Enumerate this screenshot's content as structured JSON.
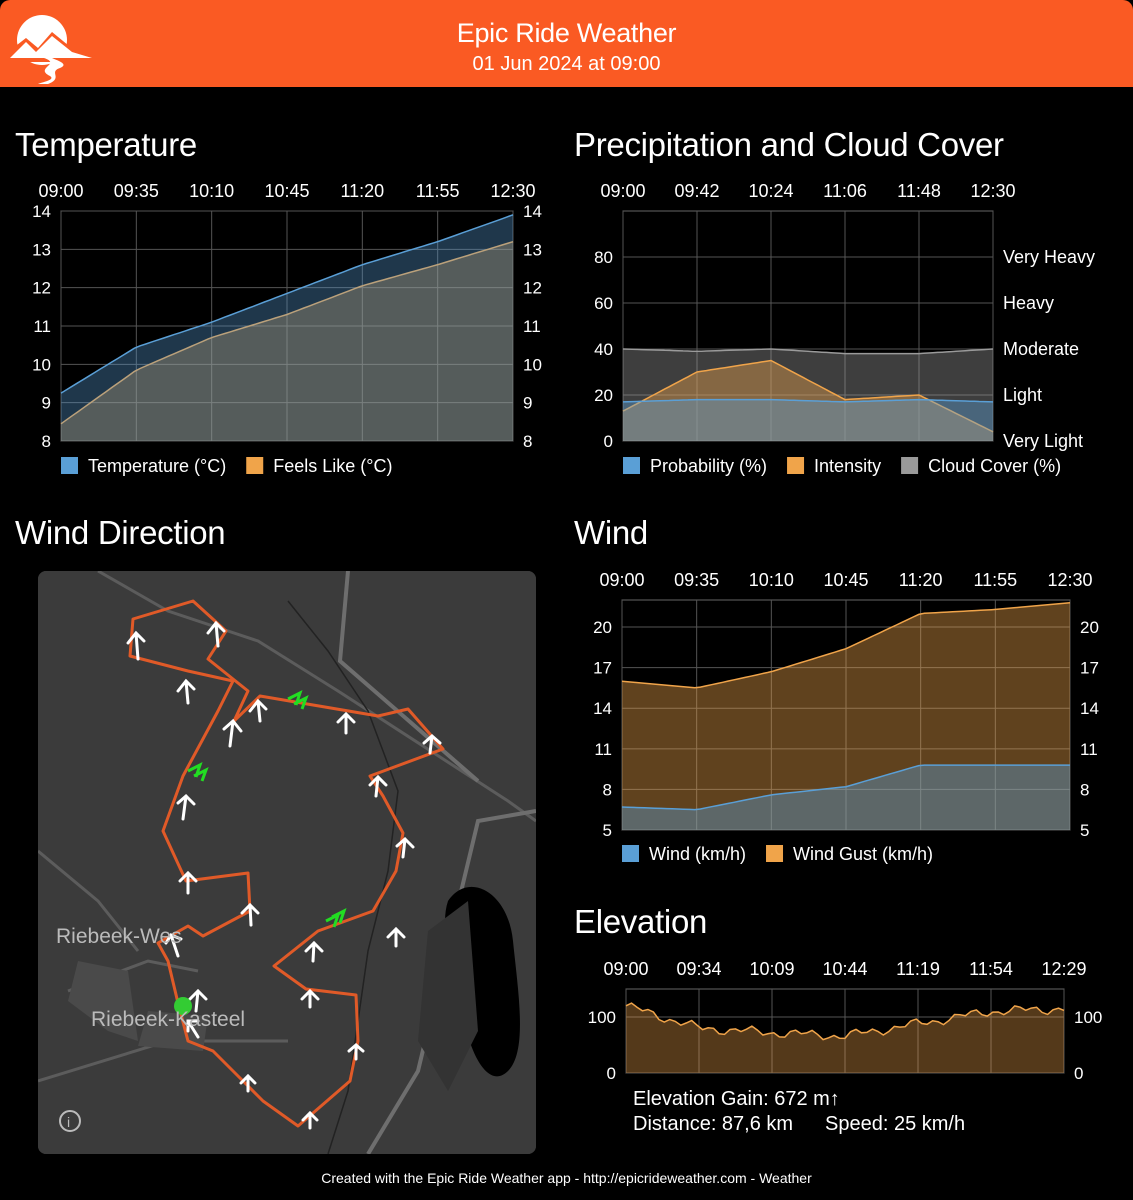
{
  "header": {
    "title": "Epic Ride Weather",
    "subtitle": "01 Jun 2024 at 09:00",
    "accent": "#fa5a23"
  },
  "temperature": {
    "title": "Temperature",
    "chart_data": {
      "type": "area",
      "x_ticks": [
        "09:00",
        "09:35",
        "10:10",
        "10:45",
        "11:20",
        "11:55",
        "12:30"
      ],
      "y_ticks": [
        8,
        9,
        10,
        11,
        12,
        13,
        14
      ],
      "ylim": [
        8,
        14
      ],
      "x": [
        "09:00",
        "09:35",
        "10:10",
        "10:45",
        "11:20",
        "11:55",
        "12:30"
      ],
      "series": [
        {
          "name": "Temperature (°C)",
          "color": "#5a9fd6",
          "values": [
            9.25,
            10.45,
            11.1,
            11.85,
            12.6,
            13.2,
            13.9
          ]
        },
        {
          "name": "Feels Like (°C)",
          "color": "#f0a44a",
          "values": [
            8.45,
            9.85,
            10.7,
            11.3,
            12.05,
            12.6,
            13.2
          ]
        }
      ]
    }
  },
  "precip": {
    "title": "Precipitation and Cloud Cover",
    "chart_data": {
      "type": "area",
      "x_ticks": [
        "09:00",
        "09:42",
        "10:24",
        "11:06",
        "11:48",
        "12:30"
      ],
      "y_ticks": [
        0,
        20,
        40,
        60,
        80
      ],
      "right_labels": [
        "Very Light",
        "Light",
        "Moderate",
        "Heavy",
        "Very Heavy"
      ],
      "ylim": [
        0,
        100
      ],
      "x": [
        "09:00",
        "09:42",
        "10:24",
        "11:06",
        "11:48",
        "12:30"
      ],
      "series": [
        {
          "name": "Probability (%)",
          "color": "#5a9fd6",
          "values": [
            17,
            18,
            18,
            17,
            18,
            17
          ]
        },
        {
          "name": "Intensity",
          "color": "#f0a44a",
          "values": [
            13,
            30,
            35,
            18,
            20,
            4
          ]
        },
        {
          "name": "Cloud Cover (%)",
          "color": "#9a9a9a",
          "values": [
            40,
            39,
            40,
            38,
            38,
            40
          ]
        }
      ]
    }
  },
  "wind_direction": {
    "title": "Wind Direction",
    "map_labels": [
      "Riebeek-Wes",
      "Riebeek-Kasteel"
    ],
    "info_icon": "info-icon"
  },
  "wind": {
    "title": "Wind",
    "chart_data": {
      "type": "area",
      "x_ticks": [
        "09:00",
        "09:35",
        "10:10",
        "10:45",
        "11:20",
        "11:55",
        "12:30"
      ],
      "y_ticks": [
        5,
        8,
        11,
        14,
        17,
        20
      ],
      "ylim": [
        5,
        22
      ],
      "x": [
        "09:00",
        "09:35",
        "10:10",
        "10:45",
        "11:20",
        "11:55",
        "12:30"
      ],
      "series": [
        {
          "name": "Wind (km/h)",
          "color": "#5a9fd6",
          "values": [
            6.7,
            6.5,
            7.6,
            8.2,
            9.8,
            9.8,
            9.8
          ]
        },
        {
          "name": "Wind Gust (km/h)",
          "color": "#f0a44a",
          "values": [
            16,
            15.5,
            16.7,
            18.4,
            21,
            21.3,
            21.8
          ]
        }
      ]
    }
  },
  "elevation": {
    "title": "Elevation",
    "chart_data": {
      "type": "area",
      "x_ticks": [
        "09:00",
        "09:34",
        "10:09",
        "10:44",
        "11:19",
        "11:54",
        "12:29"
      ],
      "y_ticks": [
        0,
        100
      ],
      "ylim": [
        0,
        150
      ],
      "x": [
        "09:00",
        "09:34",
        "10:09",
        "10:44",
        "11:19",
        "11:54",
        "12:29"
      ],
      "series": [
        {
          "name": "Elevation",
          "color": "#f0a44a",
          "values": [
            120,
            80,
            72,
            66,
            88,
            110,
            115
          ]
        }
      ]
    },
    "gain_label": "Elevation Gain: 672 m↑",
    "distance_label": "Distance: 87,6 km",
    "speed_label": "Speed: 25 km/h"
  },
  "footer": {
    "text": "Created with the Epic Ride Weather app - http://epicrideweather.com -  Weather"
  }
}
